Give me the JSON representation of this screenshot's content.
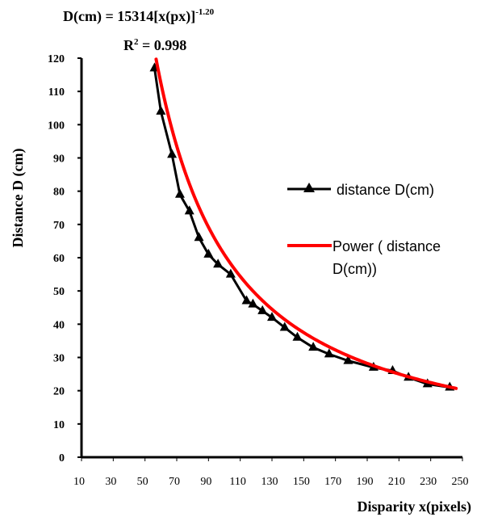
{
  "chart_data": {
    "type": "line",
    "title_line1": "D(cm) = 15314[x(px)]",
    "title_exponent": "-1.20",
    "title_line2_prefix": "R",
    "title_line2_sup": "2",
    "title_line2_suffix": " = 0.998",
    "xlabel": "Disparity x(pixels)",
    "ylabel": "Distance D (cm)",
    "xlim": [
      10,
      250
    ],
    "ylim": [
      0,
      120
    ],
    "x_ticks": [
      "10",
      "30",
      "50",
      "70",
      "90",
      "110",
      "130",
      "150",
      "170",
      "190",
      "210",
      "230",
      "250"
    ],
    "y_ticks": [
      "0",
      "10",
      "20",
      "30",
      "40",
      "50",
      "60",
      "70",
      "80",
      "90",
      "100",
      "110",
      "120"
    ],
    "grid": false,
    "legend_position": "right",
    "series": [
      {
        "name": "distance D(cm)",
        "color": "#000000",
        "marker": "triangle",
        "x": [
          56,
          60,
          67,
          72,
          78,
          84,
          90,
          96,
          104,
          114,
          118,
          124,
          130,
          138,
          146,
          156,
          166,
          178,
          194,
          206,
          216,
          228,
          242
        ],
        "y": [
          117,
          104,
          91,
          79,
          74,
          66,
          61,
          58,
          55,
          47,
          46,
          44,
          42,
          39,
          36,
          33,
          31,
          29,
          27,
          26,
          24,
          22,
          21
        ]
      },
      {
        "name": "Power ( distance D(cm))",
        "color": "#ff0000",
        "marker": "none",
        "fit": {
          "a": 15314,
          "b": -1.2
        }
      }
    ]
  }
}
